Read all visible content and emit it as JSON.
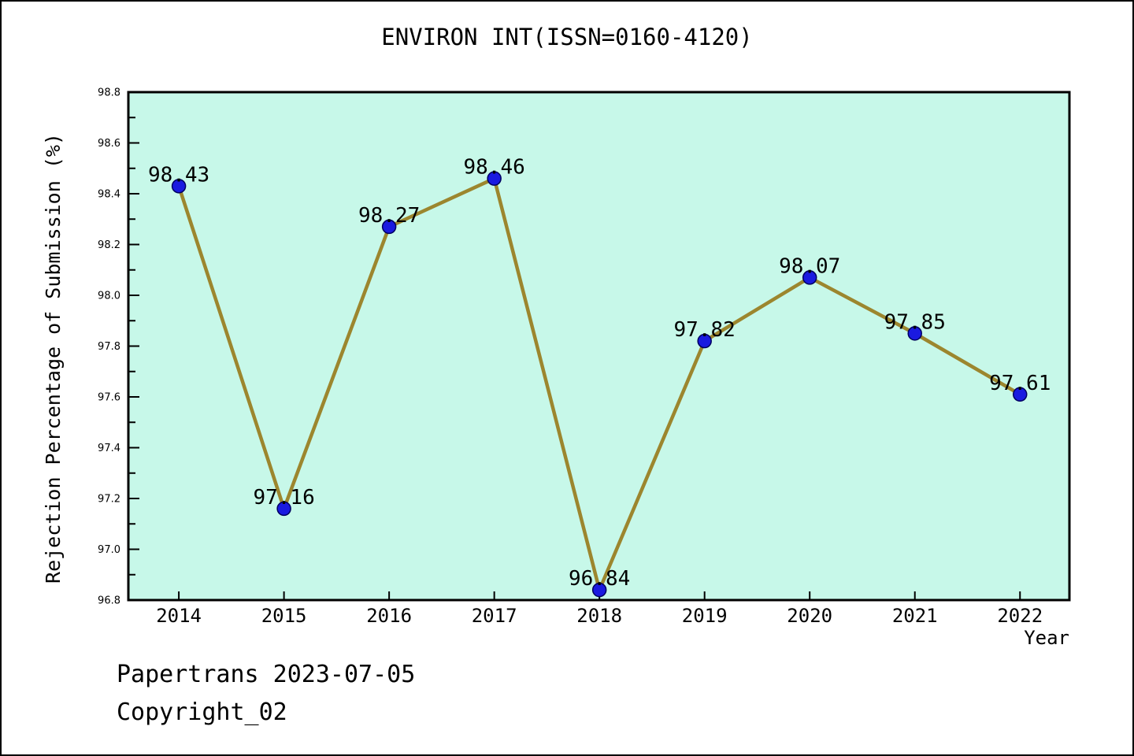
{
  "header": {
    "title": "ENVIRON INT(ISSN=0160-4120)"
  },
  "footer": {
    "line1": "Papertrans 2023-07-05",
    "line2": "Copyright_02"
  },
  "chart_data": {
    "type": "line",
    "title": "ENVIRON INT(ISSN=0160-4120)",
    "xlabel": "Year",
    "ylabel": "Rejection Percentage of Submission (%)",
    "x": [
      2014,
      2015,
      2016,
      2017,
      2018,
      2019,
      2020,
      2021,
      2022
    ],
    "values": [
      98.43,
      97.16,
      98.27,
      98.46,
      96.84,
      97.82,
      98.07,
      97.85,
      97.61
    ],
    "point_labels": [
      "98.43",
      "97.16",
      "98.27",
      "98.46",
      "96.84",
      "97.82",
      "98.07",
      "97.85",
      "97.61"
    ],
    "series_name": "Rejection Percentage of Submission",
    "ylim": [
      96.8,
      98.8
    ],
    "xlim": [
      2013.52,
      2022.47
    ],
    "y_tick_step_major": 0.2,
    "y_tick_step_minor": 0.1,
    "y_tick_labels": [
      "96.8",
      "97.0",
      "97.2",
      "97.4",
      "97.6",
      "97.8",
      "98.0",
      "98.2",
      "98.4",
      "98.6",
      "98.8"
    ],
    "x_tick_labels": [
      "2014",
      "2015",
      "2016",
      "2017",
      "2018",
      "2019",
      "2020",
      "2021",
      "2022"
    ],
    "grid": false,
    "legend": null,
    "colors": {
      "line": "#9c862e",
      "marker_fill": "#1a1ae0",
      "marker_edge": "#000060",
      "plot_background": "#c7f8e9",
      "axis": "#000000",
      "text": "#000000",
      "outer_border": "#000000"
    }
  }
}
